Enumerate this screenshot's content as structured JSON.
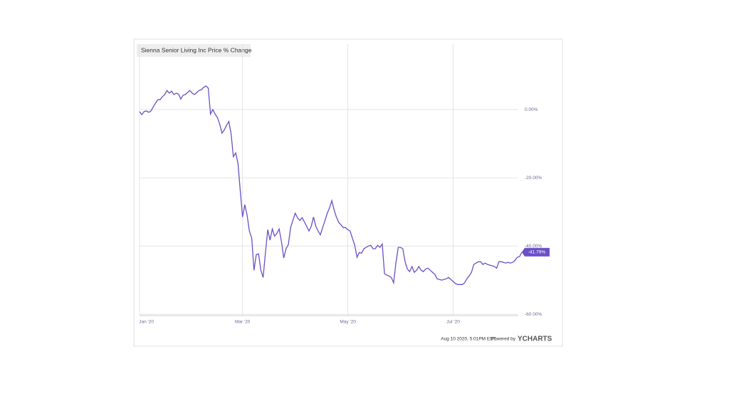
{
  "chart_data": {
    "type": "line",
    "title": "Sienna Senior Living Inc Price % Change",
    "series": [
      {
        "name": "Sienna Senior Living Inc",
        "color": "#6a50c6",
        "values": [
          -0.6,
          -1.5,
          -0.6,
          -0.4,
          -0.8,
          -0.4,
          0.8,
          1.9,
          2.9,
          2.9,
          3.8,
          4.4,
          5.6,
          4.8,
          5.4,
          4.4,
          4.8,
          4.6,
          3.1,
          4.2,
          4.4,
          5.0,
          5.6,
          4.8,
          4.4,
          5.0,
          5.6,
          5.8,
          6.5,
          6.9,
          6.3,
          -1.3,
          0,
          -1.3,
          -2.3,
          -4.2,
          -6.9,
          -6.0,
          -4.6,
          -3.5,
          -7.1,
          -13.8,
          -12.7,
          -15.8,
          -23.8,
          -31.5,
          -27.9,
          -31.0,
          -35.6,
          -37.7,
          -47.1,
          -42.5,
          -42.3,
          -47.1,
          -49.2,
          -41.9,
          -35.2,
          -38.3,
          -35.0,
          -37.1,
          -36.3,
          -35.0,
          -38.8,
          -43.5,
          -40.8,
          -39.6,
          -34.6,
          -32.5,
          -30.4,
          -31.7,
          -32.5,
          -31.7,
          -32.9,
          -34.2,
          -35.6,
          -34.2,
          -31.5,
          -34.2,
          -35.6,
          -36.7,
          -34.6,
          -32.5,
          -30.4,
          -28.8,
          -26.7,
          -29.4,
          -31.5,
          -33.1,
          -33.8,
          -34.6,
          -34.6,
          -35.2,
          -35.6,
          -37.7,
          -39.8,
          -43.3,
          -41.9,
          -42.1,
          -40.8,
          -40.4,
          -40.0,
          -39.8,
          -40.8,
          -40.8,
          -39.8,
          -40.4,
          -39.4,
          -48.1,
          -48.5,
          -48.8,
          -49.2,
          -50.8,
          -45.0,
          -40.4,
          -40.4,
          -40.8,
          -44.6,
          -46.7,
          -47.5,
          -46.0,
          -47.7,
          -47.1,
          -46.0,
          -47.1,
          -47.5,
          -46.7,
          -46.5,
          -47.1,
          -47.7,
          -48.3,
          -49.6,
          -49.8,
          -50.0,
          -49.8,
          -49.6,
          -49.2,
          -49.8,
          -50.4,
          -51.0,
          -51.3,
          -51.3,
          -51.3,
          -50.8,
          -49.6,
          -48.8,
          -47.7,
          -45.4,
          -45.0,
          -44.6,
          -44.6,
          -45.4,
          -45.0,
          -45.4,
          -45.6,
          -45.8,
          -46.0,
          -46.5,
          -44.6,
          -44.6,
          -44.8,
          -45.0,
          -44.8,
          -45.0,
          -44.8,
          -44.2,
          -43.3,
          -43.1,
          -41.79
        ]
      }
    ],
    "last_label": "-41.79%",
    "xlim": [
      0,
      167
    ],
    "xticks": [
      {
        "value": 3,
        "label": "Jan '20"
      },
      {
        "value": 45,
        "label": "Mar '20"
      },
      {
        "value": 91,
        "label": "May '20"
      },
      {
        "value": 137,
        "label": "Jul '20"
      }
    ],
    "ylim": [
      -60.4,
      19.2
    ],
    "yticks": [
      {
        "value": 0,
        "label": "0.00%"
      },
      {
        "value": -20,
        "label": "-20.00%"
      },
      {
        "value": -40,
        "label": "-40.00%"
      },
      {
        "value": -60,
        "label": "-60.00%"
      }
    ],
    "grid": true,
    "timestamp": "Aug 10 2020, 5:01PM EDT.",
    "powered_by": "Powered by",
    "brand": "YCHARTS"
  }
}
